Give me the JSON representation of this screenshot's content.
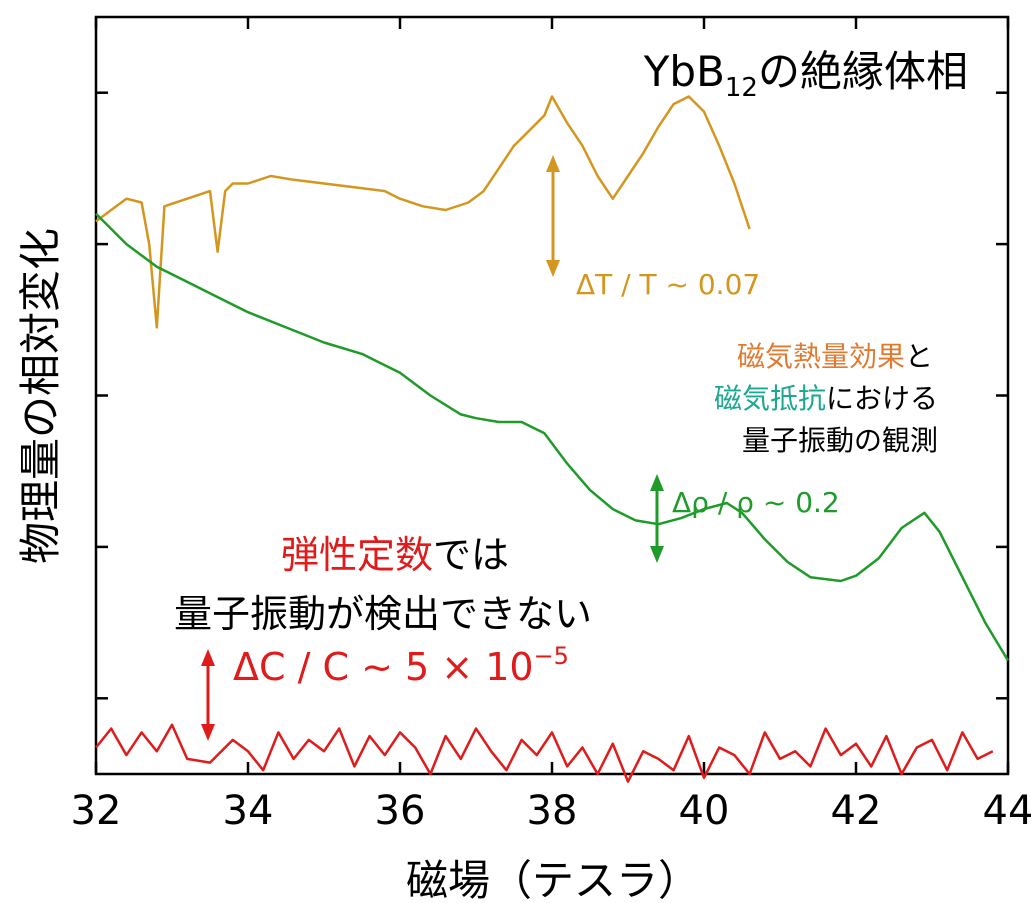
{
  "chart_data": {
    "type": "line",
    "title_main": "YbB",
    "title_sub": "12",
    "title_rest": "の絶縁体相",
    "xlabel": "磁場（テスラ）",
    "ylabel": "物理量の相対変化",
    "xlim": [
      32,
      44
    ],
    "ylim": [
      0,
      10
    ],
    "xticks": [
      32,
      34,
      36,
      38,
      40,
      42,
      44
    ],
    "xtick_labels": [
      "32",
      "34",
      "36",
      "38",
      "40",
      "42",
      "44"
    ],
    "yticks": [
      1,
      3,
      5,
      7,
      9
    ],
    "grid": false,
    "colors": {
      "thermal": "#D4961F",
      "resist": "#1E9B28",
      "elastic": "#E01B1B",
      "axis": "#000000"
    },
    "series": [
      {
        "key": "thermal",
        "x": [
          32.0,
          32.2,
          32.4,
          32.6,
          32.7,
          32.8,
          32.9,
          33.2,
          33.5,
          33.6,
          33.7,
          33.8,
          34.0,
          34.3,
          34.6,
          35.0,
          35.4,
          35.8,
          36.0,
          36.3,
          36.6,
          36.9,
          37.1,
          37.3,
          37.5,
          37.7,
          37.9,
          38.0,
          38.2,
          38.4,
          38.6,
          38.8,
          39.0,
          39.2,
          39.4,
          39.6,
          39.8,
          40.0,
          40.2,
          40.4,
          40.6
        ],
        "y": [
          7.3,
          7.45,
          7.6,
          7.55,
          7.0,
          5.9,
          7.5,
          7.6,
          7.7,
          6.9,
          7.7,
          7.8,
          7.8,
          7.9,
          7.85,
          7.8,
          7.75,
          7.7,
          7.6,
          7.5,
          7.45,
          7.55,
          7.7,
          8.0,
          8.3,
          8.5,
          8.7,
          8.95,
          8.6,
          8.3,
          7.9,
          7.6,
          7.9,
          8.2,
          8.55,
          8.85,
          8.95,
          8.75,
          8.3,
          7.8,
          7.2
        ]
      },
      {
        "key": "resist",
        "x": [
          32.0,
          32.4,
          32.8,
          33.2,
          33.6,
          34.0,
          34.5,
          35.0,
          35.5,
          36.0,
          36.4,
          36.8,
          37.0,
          37.3,
          37.6,
          37.9,
          38.2,
          38.5,
          38.8,
          39.1,
          39.4,
          39.7,
          40.0,
          40.3,
          40.5,
          40.8,
          41.1,
          41.4,
          41.8,
          42.0,
          42.3,
          42.6,
          42.9,
          43.1,
          43.4,
          43.7,
          44.0
        ],
        "y": [
          7.4,
          7.0,
          6.7,
          6.5,
          6.3,
          6.1,
          5.9,
          5.7,
          5.55,
          5.3,
          5.0,
          4.75,
          4.7,
          4.65,
          4.65,
          4.5,
          4.1,
          3.75,
          3.5,
          3.35,
          3.3,
          3.38,
          3.5,
          3.58,
          3.45,
          3.1,
          2.8,
          2.6,
          2.55,
          2.62,
          2.85,
          3.25,
          3.45,
          3.2,
          2.6,
          2.0,
          1.5
        ]
      },
      {
        "key": "elastic",
        "x": [
          32.0,
          32.2,
          32.4,
          32.6,
          32.8,
          33.0,
          33.2,
          33.5,
          33.8,
          34.0,
          34.2,
          34.4,
          34.6,
          34.8,
          35.0,
          35.2,
          35.4,
          35.6,
          35.8,
          36.0,
          36.2,
          36.4,
          36.6,
          36.8,
          37.0,
          37.2,
          37.4,
          37.6,
          37.8,
          38.0,
          38.2,
          38.4,
          38.6,
          38.8,
          39.0,
          39.2,
          39.4,
          39.6,
          39.8,
          40.0,
          40.2,
          40.4,
          40.6,
          40.8,
          41.0,
          41.2,
          41.4,
          41.6,
          41.8,
          42.0,
          42.2,
          42.4,
          42.6,
          42.8,
          43.0,
          43.2,
          43.4,
          43.6,
          43.8
        ],
        "y": [
          0.35,
          0.6,
          0.25,
          0.55,
          0.3,
          0.65,
          0.2,
          0.15,
          0.45,
          0.3,
          0.05,
          0.55,
          0.2,
          0.45,
          0.3,
          0.6,
          0.1,
          0.5,
          0.25,
          0.55,
          0.35,
          0.0,
          0.5,
          0.2,
          0.6,
          0.3,
          0.05,
          0.45,
          0.25,
          0.55,
          0.1,
          0.35,
          0.0,
          0.4,
          -0.1,
          0.3,
          0.2,
          0.05,
          0.5,
          -0.05,
          0.35,
          0.25,
          0.0,
          0.55,
          0.2,
          0.3,
          0.1,
          0.6,
          0.25,
          0.4,
          0.1,
          0.5,
          0.0,
          0.35,
          0.45,
          0.05,
          0.55,
          0.2,
          0.3
        ]
      }
    ],
    "annotations": {
      "thermal_delta": "ΔT / T ~ 0.07",
      "resist_delta": "Δρ / ρ ~ 0.2",
      "elastic_delta": "ΔC / C ~ 5 × 10",
      "elastic_exp": "−5",
      "mce_line1_a": "磁気熱量効果",
      "mce_line1_b": "と",
      "mce_line2_a": "磁気抵抗",
      "mce_line2_b": "における",
      "mce_line3": "量子振動の観測",
      "elastic_note1_a": "弾性定数",
      "elastic_note1_b": "では",
      "elastic_note2": "量子振動が検出できない"
    }
  }
}
